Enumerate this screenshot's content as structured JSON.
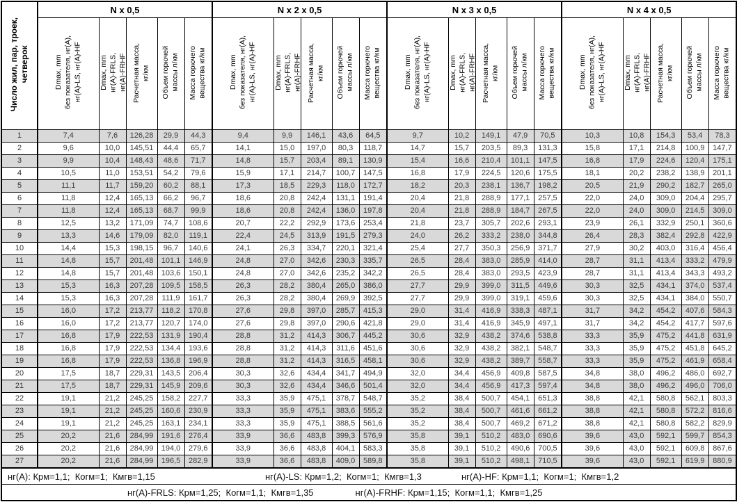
{
  "table": {
    "corner_header": "Число жил, пар, троек,\nчетверок",
    "groups": [
      {
        "title": "N x 0,5"
      },
      {
        "title": "N x 2 x 0,5"
      },
      {
        "title": "N x 3 x 0,5"
      },
      {
        "title": "N x 4 x 0,5"
      }
    ],
    "sub_headers": [
      "Dmax, mm\nбез показателя, нг(А),\nнг(А)-LS, нг(А)-HF",
      "Dmax, mm\nнг(А)-FRLS,\nнг(А)-FRHF",
      "Расчетная масса,\nкг/км",
      "Объем горючей\nмассы л/км",
      "Масса горючего\nвещества кг/км"
    ],
    "rows": [
      {
        "n": "1",
        "g1": [
          "7,4",
          "7,6",
          "126,28",
          "29,9",
          "44,3"
        ],
        "g2": [
          "9,4",
          "9,9",
          "146,1",
          "43,6",
          "64,5"
        ],
        "g3": [
          "9,7",
          "10,2",
          "149,1",
          "47,9",
          "70,5"
        ],
        "g4": [
          "10,3",
          "10,8",
          "154,3",
          "53,4",
          "78,3"
        ]
      },
      {
        "n": "2",
        "g1": [
          "9,6",
          "10,0",
          "145,51",
          "44,4",
          "65,7"
        ],
        "g2": [
          "14,1",
          "15,0",
          "197,0",
          "80,3",
          "118,7"
        ],
        "g3": [
          "14,7",
          "15,7",
          "203,5",
          "89,3",
          "131,3"
        ],
        "g4": [
          "15,8",
          "17,1",
          "214,8",
          "100,9",
          "147,7"
        ]
      },
      {
        "n": "3",
        "g1": [
          "9,9",
          "10,4",
          "148,43",
          "48,6",
          "71,7"
        ],
        "g2": [
          "14,8",
          "15,7",
          "203,4",
          "89,1",
          "130,9"
        ],
        "g3": [
          "15,4",
          "16,6",
          "210,4",
          "101,1",
          "147,5"
        ],
        "g4": [
          "16,8",
          "17,9",
          "224,6",
          "120,4",
          "175,1"
        ]
      },
      {
        "n": "4",
        "g1": [
          "10,5",
          "11,0",
          "153,51",
          "54,2",
          "79,6"
        ],
        "g2": [
          "15,9",
          "17,1",
          "214,7",
          "100,7",
          "147,5"
        ],
        "g3": [
          "16,8",
          "17,9",
          "224,5",
          "120,6",
          "175,5"
        ],
        "g4": [
          "18,1",
          "20,2",
          "238,2",
          "138,9",
          "201,1"
        ]
      },
      {
        "n": "5",
        "g1": [
          "11,1",
          "11,7",
          "159,20",
          "60,2",
          "88,1"
        ],
        "g2": [
          "17,3",
          "18,5",
          "229,3",
          "118,0",
          "172,7"
        ],
        "g3": [
          "18,2",
          "20,3",
          "238,1",
          "136,7",
          "198,2"
        ],
        "g4": [
          "20,5",
          "21,9",
          "290,2",
          "182,7",
          "265,0"
        ]
      },
      {
        "n": "6",
        "g1": [
          "11,8",
          "12,4",
          "165,13",
          "66,2",
          "96,7"
        ],
        "g2": [
          "18,6",
          "20,8",
          "242,4",
          "131,1",
          "191,4"
        ],
        "g3": [
          "20,4",
          "21,8",
          "288,9",
          "177,1",
          "257,5"
        ],
        "g4": [
          "22,0",
          "24,0",
          "309,0",
          "204,4",
          "295,7"
        ]
      },
      {
        "n": "7",
        "g1": [
          "11,8",
          "12,4",
          "165,13",
          "68,7",
          "99,9"
        ],
        "g2": [
          "18,6",
          "20,8",
          "242,4",
          "136,0",
          "197,8"
        ],
        "g3": [
          "20,4",
          "21,8",
          "288,9",
          "184,7",
          "267,5"
        ],
        "g4": [
          "22,0",
          "24,0",
          "309,0",
          "214,5",
          "309,0"
        ]
      },
      {
        "n": "8",
        "g1": [
          "12,5",
          "13,2",
          "171,09",
          "74,7",
          "108,6"
        ],
        "g2": [
          "20,7",
          "22,2",
          "292,9",
          "173,6",
          "253,4"
        ],
        "g3": [
          "21,8",
          "23,7",
          "305,7",
          "202,6",
          "293,1"
        ],
        "g4": [
          "23,9",
          "26,1",
          "332,9",
          "250,1",
          "360,6"
        ]
      },
      {
        "n": "9",
        "g1": [
          "13,3",
          "14,6",
          "179,09",
          "82,0",
          "119,1"
        ],
        "g2": [
          "22,4",
          "24,5",
          "313,9",
          "191,5",
          "279,3"
        ],
        "g3": [
          "24,0",
          "26,2",
          "333,2",
          "238,0",
          "344,8"
        ],
        "g4": [
          "26,4",
          "28,3",
          "382,4",
          "292,8",
          "422,9"
        ]
      },
      {
        "n": "10",
        "g1": [
          "14,4",
          "15,3",
          "198,15",
          "96,7",
          "140,6"
        ],
        "g2": [
          "24,1",
          "26,3",
          "334,7",
          "220,1",
          "321,4"
        ],
        "g3": [
          "25,4",
          "27,7",
          "350,3",
          "256,9",
          "371,7"
        ],
        "g4": [
          "27,9",
          "30,2",
          "403,0",
          "316,4",
          "456,4"
        ]
      },
      {
        "n": "11",
        "g1": [
          "14,8",
          "15,7",
          "201,48",
          "101,1",
          "146,9"
        ],
        "g2": [
          "24,8",
          "27,0",
          "342,6",
          "230,3",
          "335,7"
        ],
        "g3": [
          "26,5",
          "28,4",
          "383,0",
          "285,9",
          "414,0"
        ],
        "g4": [
          "28,7",
          "31,1",
          "413,4",
          "333,2",
          "479,9"
        ]
      },
      {
        "n": "12",
        "g1": [
          "14,8",
          "15,7",
          "201,48",
          "103,6",
          "150,1"
        ],
        "g2": [
          "24,8",
          "27,0",
          "342,6",
          "235,2",
          "342,2"
        ],
        "g3": [
          "26,5",
          "28,4",
          "383,0",
          "293,5",
          "423,9"
        ],
        "g4": [
          "28,7",
          "31,1",
          "413,4",
          "343,3",
          "493,2"
        ]
      },
      {
        "n": "13",
        "g1": [
          "15,3",
          "16,3",
          "207,28",
          "109,5",
          "158,5"
        ],
        "g2": [
          "26,3",
          "28,2",
          "380,4",
          "265,0",
          "386,0"
        ],
        "g3": [
          "27,7",
          "29,9",
          "399,0",
          "311,5",
          "449,6"
        ],
        "g4": [
          "30,3",
          "32,5",
          "434,1",
          "374,0",
          "537,4"
        ]
      },
      {
        "n": "14",
        "g1": [
          "15,3",
          "16,3",
          "207,28",
          "111,9",
          "161,7"
        ],
        "g2": [
          "26,3",
          "28,2",
          "380,4",
          "269,9",
          "392,5"
        ],
        "g3": [
          "27,7",
          "29,9",
          "399,0",
          "319,1",
          "459,6"
        ],
        "g4": [
          "30,3",
          "32,5",
          "434,1",
          "384,0",
          "550,7"
        ]
      },
      {
        "n": "15",
        "g1": [
          "16,0",
          "17,2",
          "213,77",
          "118,2",
          "170,8"
        ],
        "g2": [
          "27,6",
          "29,8",
          "397,0",
          "285,7",
          "415,3"
        ],
        "g3": [
          "29,0",
          "31,4",
          "416,9",
          "338,3",
          "487,1"
        ],
        "g4": [
          "31,7",
          "34,2",
          "454,2",
          "407,6",
          "584,3"
        ]
      },
      {
        "n": "16",
        "g1": [
          "16,0",
          "17,2",
          "213,77",
          "120,7",
          "174,0"
        ],
        "g2": [
          "27,6",
          "29,8",
          "397,0",
          "290,6",
          "421,8"
        ],
        "g3": [
          "29,0",
          "31,4",
          "416,9",
          "345,9",
          "497,1"
        ],
        "g4": [
          "31,7",
          "34,2",
          "454,2",
          "417,7",
          "597,6"
        ]
      },
      {
        "n": "17",
        "g1": [
          "16,8",
          "17,9",
          "222,53",
          "131,9",
          "190,4"
        ],
        "g2": [
          "28,8",
          "31,2",
          "414,3",
          "306,7",
          "445,2"
        ],
        "g3": [
          "30,6",
          "32,9",
          "438,2",
          "374,6",
          "538,8"
        ],
        "g4": [
          "33,3",
          "35,9",
          "475,2",
          "441,8",
          "631,9"
        ]
      },
      {
        "n": "18",
        "g1": [
          "16,8",
          "17,9",
          "222,53",
          "134,4",
          "193,6"
        ],
        "g2": [
          "28,8",
          "31,2",
          "414,3",
          "311,6",
          "451,6"
        ],
        "g3": [
          "30,6",
          "32,9",
          "438,2",
          "382,1",
          "548,7"
        ],
        "g4": [
          "33,3",
          "35,9",
          "475,2",
          "451,8",
          "645,2"
        ]
      },
      {
        "n": "19",
        "g1": [
          "16,8",
          "17,9",
          "222,53",
          "136,8",
          "196,9"
        ],
        "g2": [
          "28,8",
          "31,2",
          "414,3",
          "316,5",
          "458,1"
        ],
        "g3": [
          "30,6",
          "32,9",
          "438,2",
          "389,7",
          "558,7"
        ],
        "g4": [
          "33,3",
          "35,9",
          "475,2",
          "461,9",
          "658,4"
        ]
      },
      {
        "n": "20",
        "g1": [
          "17,5",
          "18,7",
          "229,31",
          "143,5",
          "206,4"
        ],
        "g2": [
          "30,3",
          "32,6",
          "434,4",
          "341,7",
          "494,9"
        ],
        "g3": [
          "32,0",
          "34,4",
          "456,9",
          "409,8",
          "587,5"
        ],
        "g4": [
          "34,8",
          "38,0",
          "496,2",
          "486,0",
          "692,7"
        ]
      },
      {
        "n": "21",
        "g1": [
          "17,5",
          "18,7",
          "229,31",
          "145,9",
          "209,6"
        ],
        "g2": [
          "30,3",
          "32,6",
          "434,4",
          "346,6",
          "501,4"
        ],
        "g3": [
          "32,0",
          "34,4",
          "456,9",
          "417,3",
          "597,4"
        ],
        "g4": [
          "34,8",
          "38,0",
          "496,2",
          "496,0",
          "706,0"
        ]
      },
      {
        "n": "22",
        "g1": [
          "19,1",
          "21,2",
          "245,25",
          "158,2",
          "227,7"
        ],
        "g2": [
          "33,3",
          "35,9",
          "475,1",
          "378,7",
          "548,7"
        ],
        "g3": [
          "35,2",
          "38,4",
          "500,7",
          "454,1",
          "651,3"
        ],
        "g4": [
          "38,8",
          "42,1",
          "580,8",
          "562,1",
          "803,3"
        ]
      },
      {
        "n": "23",
        "g1": [
          "19,1",
          "21,2",
          "245,25",
          "160,6",
          "230,9"
        ],
        "g2": [
          "33,3",
          "35,9",
          "475,1",
          "383,6",
          "555,2"
        ],
        "g3": [
          "35,2",
          "38,4",
          "500,7",
          "461,6",
          "661,2"
        ],
        "g4": [
          "38,8",
          "42,1",
          "580,8",
          "572,2",
          "816,6"
        ]
      },
      {
        "n": "24",
        "g1": [
          "19,1",
          "21,2",
          "245,25",
          "163,1",
          "234,1"
        ],
        "g2": [
          "33,3",
          "35,9",
          "475,1",
          "388,5",
          "561,6"
        ],
        "g3": [
          "35,2",
          "38,4",
          "500,7",
          "469,2",
          "671,2"
        ],
        "g4": [
          "38,8",
          "42,1",
          "580,8",
          "582,2",
          "829,9"
        ]
      },
      {
        "n": "25",
        "g1": [
          "20,2",
          "21,6",
          "284,99",
          "191,6",
          "276,4"
        ],
        "g2": [
          "33,9",
          "36,6",
          "483,8",
          "399,3",
          "576,9"
        ],
        "g3": [
          "35,8",
          "39,1",
          "510,2",
          "483,0",
          "690,6"
        ],
        "g4": [
          "39,6",
          "43,0",
          "592,1",
          "599,7",
          "854,3"
        ]
      },
      {
        "n": "26",
        "g1": [
          "20,2",
          "21,6",
          "284,99",
          "194,0",
          "279,6"
        ],
        "g2": [
          "33,9",
          "36,6",
          "483,8",
          "404,1",
          "583,3"
        ],
        "g3": [
          "35,8",
          "39,1",
          "510,2",
          "490,6",
          "700,5"
        ],
        "g4": [
          "39,6",
          "43,0",
          "592,1",
          "609,8",
          "867,6"
        ]
      },
      {
        "n": "27",
        "g1": [
          "20,2",
          "21,6",
          "284,99",
          "196,5",
          "282,9"
        ],
        "g2": [
          "33,9",
          "36,6",
          "483,8",
          "409,0",
          "589,8"
        ],
        "g3": [
          "35,8",
          "39,1",
          "510,2",
          "498,1",
          "710,5"
        ],
        "g4": [
          "39,6",
          "43,0",
          "592,1",
          "619,9",
          "880,9"
        ]
      }
    ],
    "footer": {
      "line1": [
        "нг(А): Крм=1,1;  Когм=1;  Кмгв=1,15",
        "нг(А)-LS: Крм=1,2;  Когм=1;  Кмгв=1,3",
        "нг(А)-HF: Крм=1,1;  Когм=1;  Кмгв=1,2"
      ],
      "line2": [
        "нг(А)-FRLS: Крм=1,25;  Когм=1,1;  Кмгв=1,35",
        "нг(А)-FRHF: Крм=1,15;  Когм=1,1;  Кмгв=1,25"
      ]
    }
  },
  "colors": {
    "stripe": "#d9d9d9",
    "border": "#000000",
    "data_text": "#3a3a3a"
  }
}
